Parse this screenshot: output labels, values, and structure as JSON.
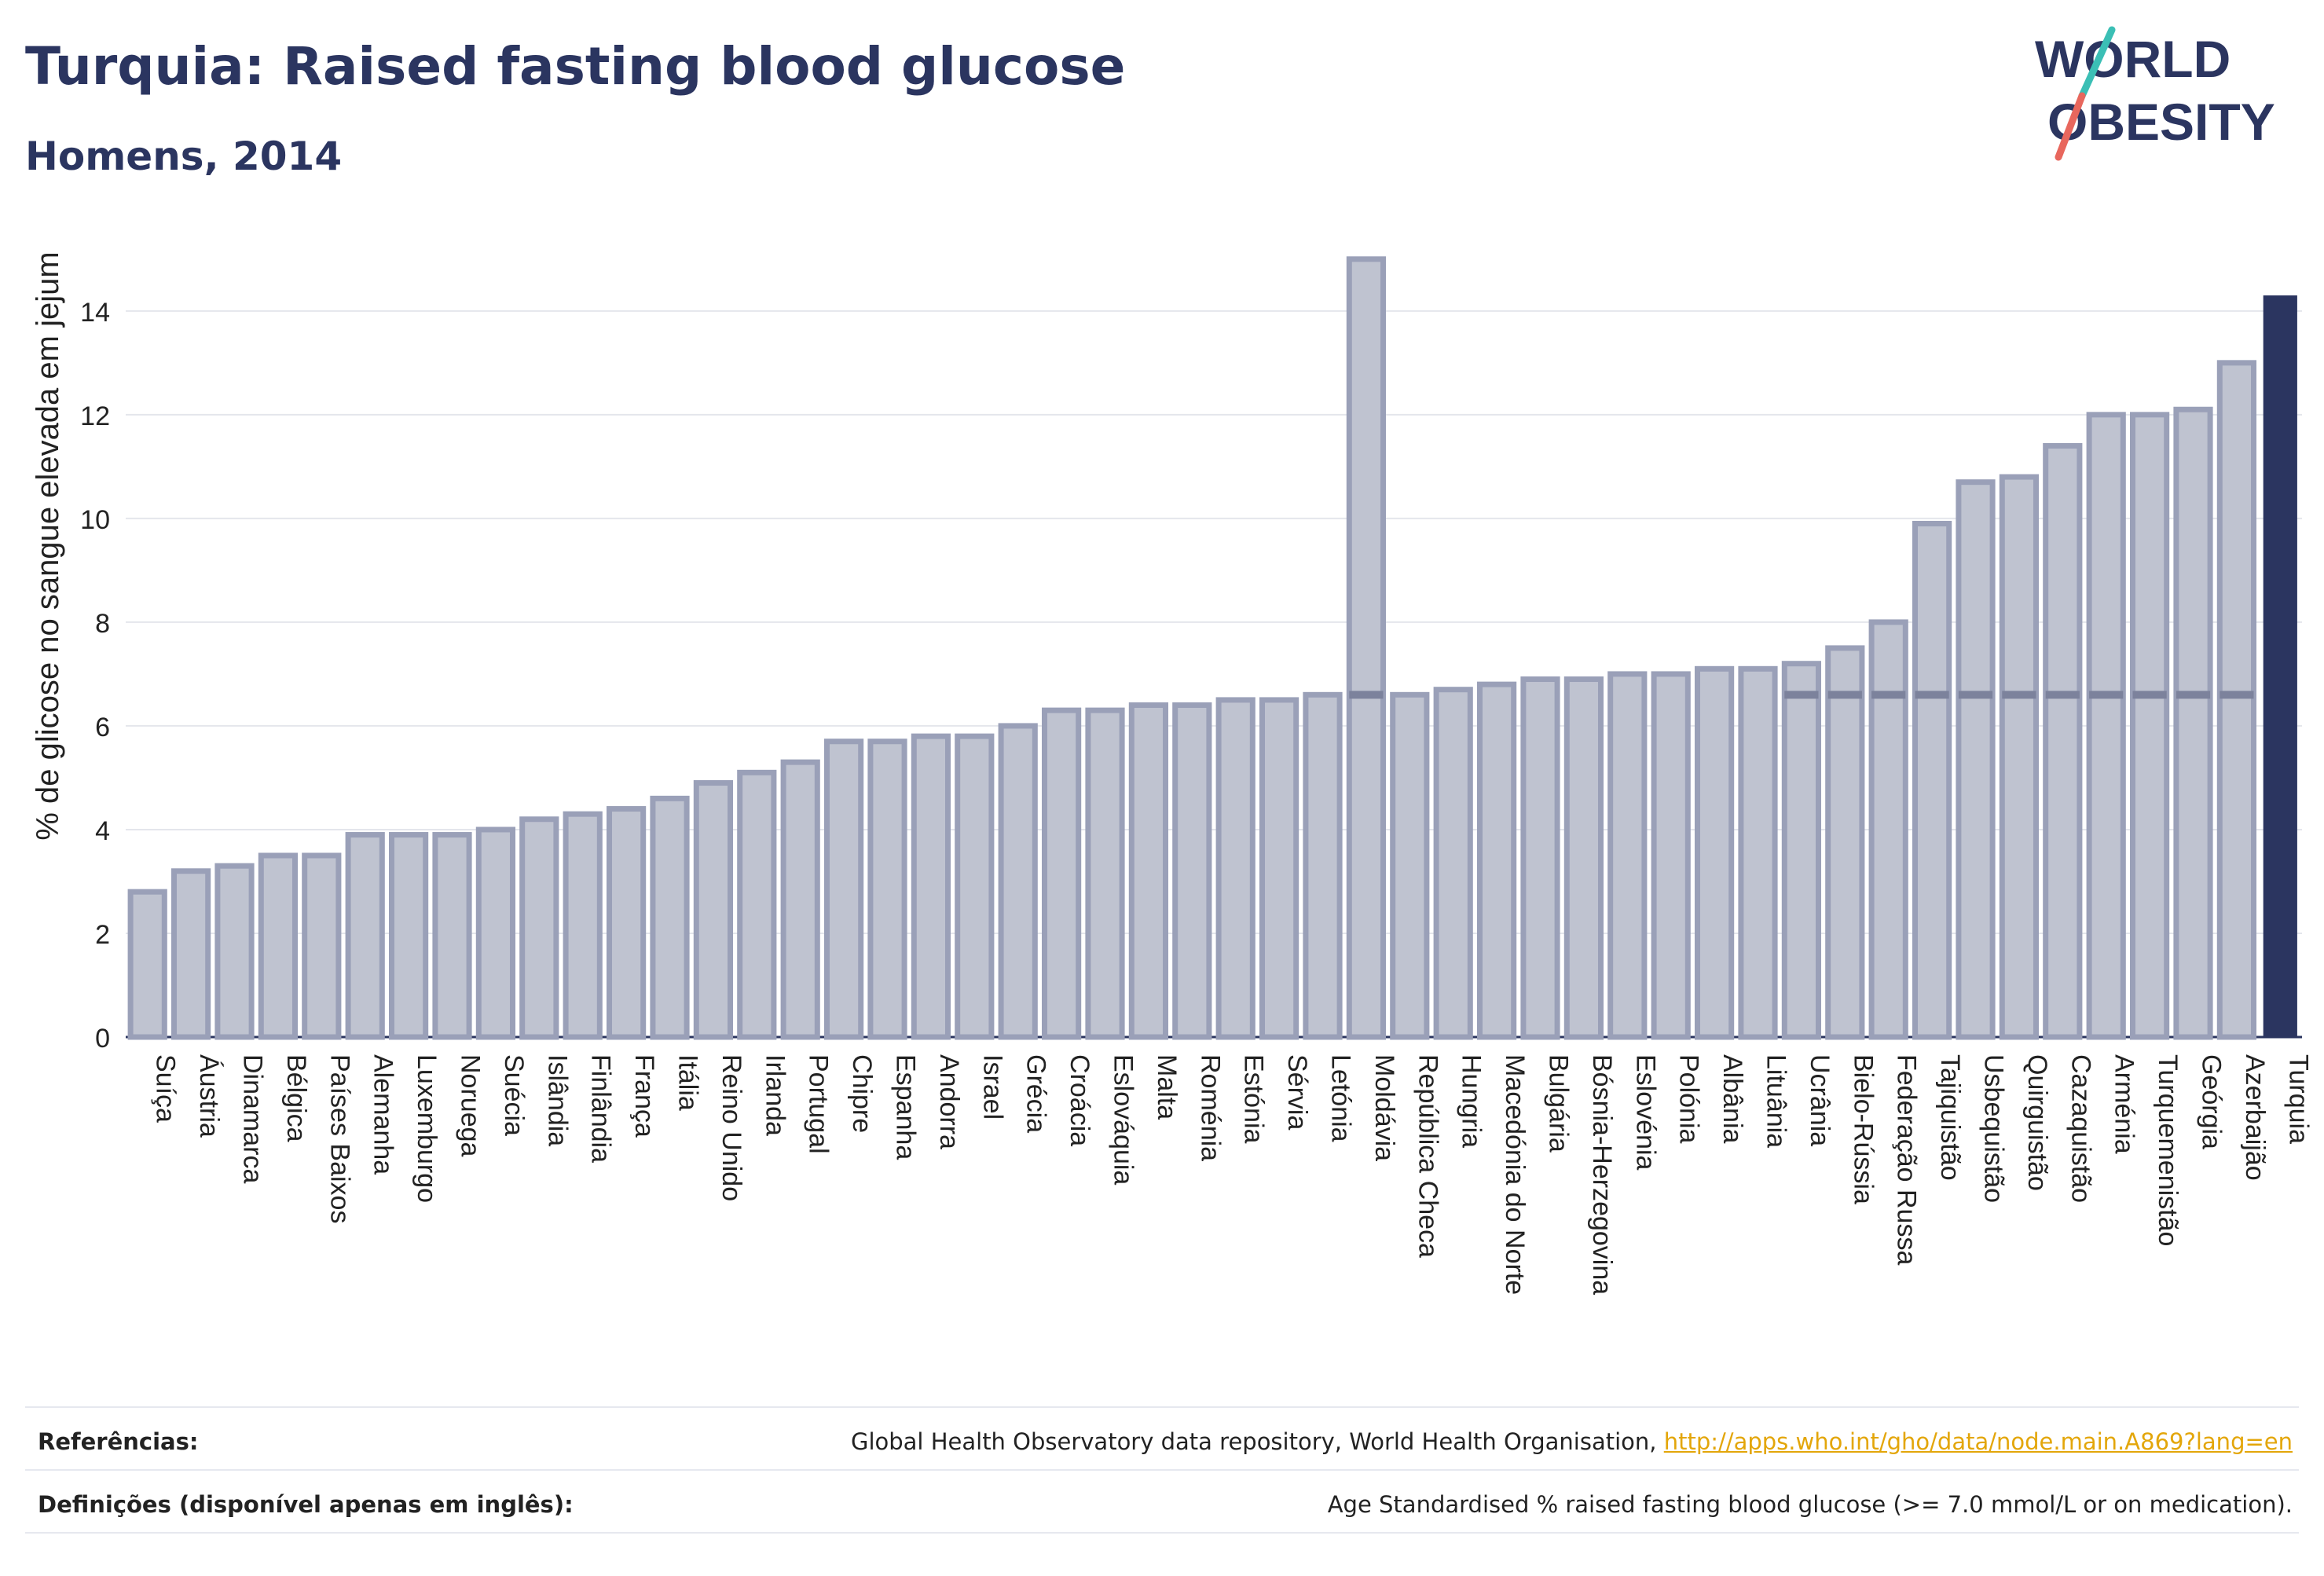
{
  "header": {
    "title": "Turquia: Raised fasting blood glucose",
    "subtitle": "Homens, 2014"
  },
  "logo": {
    "line1": "W",
    "line1b": "RLD",
    "line2": "OBESITY",
    "text": "WORLD OBESITY"
  },
  "colors": {
    "bar_fill": "#bfc3d0",
    "bar_stroke": "#9aa0b8",
    "highlight": "#2b3560",
    "grid": "#e4e6ec",
    "logo_teal": "#3bbfb5",
    "logo_red": "#e8675d",
    "link": "#e3a60a"
  },
  "chart_data": {
    "type": "bar",
    "ylabel": "% de glicose no sangue elevada em jejum",
    "ylim": [
      0,
      15.3
    ],
    "yticks": [
      0,
      2,
      4,
      6,
      8,
      10,
      12,
      14
    ],
    "grid": true,
    "highlight_category": "Turquia",
    "categories": [
      "Suíça",
      "Áustria",
      "Dinamarca",
      "Bélgica",
      "Países Baixos",
      "Alemanha",
      "Luxemburgo",
      "Noruega",
      "Suécia",
      "Islândia",
      "Finlândia",
      "França",
      "Itália",
      "Reino Unido",
      "Irlanda",
      "Portugal",
      "Chipre",
      "Espanha",
      "Andorra",
      "Israel",
      "Grécia",
      "Croácia",
      "Eslováquia",
      "Malta",
      "Roménia",
      "Estónia",
      "Sérvia",
      "Letónia",
      "Moldávia",
      "República Checa",
      "Hungria",
      "Macedónia do Norte",
      "Bulgária",
      "Bósnia-Herzegovina",
      "Eslovénia",
      "Polónia",
      "Albânia",
      "Lituânia",
      "Ucrânia",
      "Bielo-Rússia",
      "Federação Russa",
      "Tajiquistão",
      "Usbequistão",
      "Quirguistão",
      "Cazaquistão",
      "Arménia",
      "Turquemenistão",
      "Geórgia",
      "Azerbaijão",
      "Turquia"
    ],
    "values": [
      2.8,
      3.2,
      3.3,
      3.5,
      3.5,
      3.9,
      3.9,
      3.9,
      4.0,
      4.2,
      4.3,
      4.4,
      4.6,
      4.9,
      5.1,
      5.3,
      5.7,
      5.7,
      5.8,
      5.8,
      6.0,
      6.3,
      6.3,
      6.4,
      6.4,
      6.5,
      6.5,
      6.6,
      15.0,
      6.6,
      6.7,
      6.8,
      6.9,
      6.9,
      7.0,
      7.0,
      7.1,
      7.1,
      7.2,
      7.5,
      8.0,
      9.9,
      10.7,
      10.8,
      11.4,
      12.0,
      12.0,
      12.1,
      13.0,
      14.3
    ],
    "reference_value": 6.6
  },
  "footer": {
    "ref_label": "Referências:",
    "ref_text": "Global Health Observatory data repository, World Health Organisation, ",
    "ref_link": "http://apps.who.int/gho/data/node.main.A869?lang=en",
    "def_label": "Definições (disponível apenas em inglês):",
    "def_text": "Age Standardised % raised fasting blood glucose (>= 7.0 mmol/L or on medication)."
  }
}
